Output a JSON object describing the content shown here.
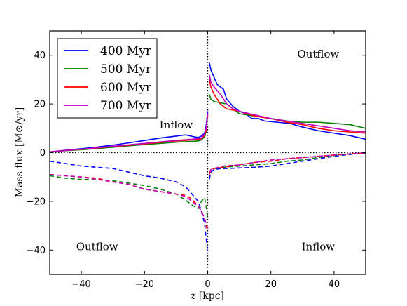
{
  "chart_data": {
    "type": "line",
    "title": "",
    "xlabel": "z [kpc]",
    "ylabel": "Mass flux [M⊙/yr]",
    "xlim": [
      -50,
      50
    ],
    "ylim": [
      -50,
      50
    ],
    "xticks": [
      -40,
      -20,
      0,
      20,
      40
    ],
    "yticks": [
      -40,
      -20,
      0,
      20,
      40
    ],
    "grid": false,
    "legend_position": "top-left",
    "reference_lines": {
      "vertical_x": 0,
      "horizontal_y": 0,
      "style": "dotted"
    },
    "annotations": [
      {
        "text": "Outflow",
        "x": 35,
        "y": 39
      },
      {
        "text": "Inflow",
        "x": -10,
        "y": 10
      },
      {
        "text": "Outflow",
        "x": -35,
        "y": -40
      },
      {
        "text": "Inflow",
        "x": 35,
        "y": -40
      }
    ],
    "series": [
      {
        "name": "400 Myr",
        "color": "#0000ff",
        "solid_left": [
          [
            -50,
            0.3
          ],
          [
            -45,
            1
          ],
          [
            -40,
            1.6
          ],
          [
            -35,
            2.3
          ],
          [
            -30,
            3.1
          ],
          [
            -25,
            4
          ],
          [
            -20,
            5
          ],
          [
            -15,
            6
          ],
          [
            -10,
            6.8
          ],
          [
            -7,
            7.3
          ],
          [
            -5,
            6.7
          ],
          [
            -3,
            6.2
          ],
          [
            -2,
            6.8
          ],
          [
            -1,
            8
          ],
          [
            -0.5,
            11
          ],
          [
            0,
            17
          ]
        ],
        "solid_right": [
          [
            0.5,
            37
          ],
          [
            1,
            34
          ],
          [
            2,
            31
          ],
          [
            3,
            28
          ],
          [
            4,
            27
          ],
          [
            5,
            26
          ],
          [
            6,
            22
          ],
          [
            8,
            19
          ],
          [
            10,
            17
          ],
          [
            12,
            16
          ],
          [
            14,
            14
          ],
          [
            16,
            14
          ],
          [
            18,
            13
          ],
          [
            22,
            12.5
          ],
          [
            26,
            12
          ],
          [
            30,
            10.5
          ],
          [
            35,
            9
          ],
          [
            40,
            8
          ],
          [
            45,
            7
          ],
          [
            50,
            5.5
          ]
        ],
        "dashed_left": [
          [
            -50,
            -3.5
          ],
          [
            -45,
            -4.5
          ],
          [
            -40,
            -5.5
          ],
          [
            -35,
            -6
          ],
          [
            -30,
            -6.5
          ],
          [
            -25,
            -8
          ],
          [
            -20,
            -9.5
          ],
          [
            -15,
            -10.5
          ],
          [
            -10,
            -12
          ],
          [
            -7,
            -14
          ],
          [
            -5,
            -17
          ],
          [
            -3,
            -20
          ],
          [
            -2,
            -24
          ],
          [
            -1,
            -29
          ],
          [
            -0.5,
            -35
          ],
          [
            0,
            -41
          ]
        ],
        "dashed_right": [
          [
            0.5,
            -11
          ],
          [
            1,
            -8
          ],
          [
            2,
            -7
          ],
          [
            4,
            -6.5
          ],
          [
            6,
            -6.5
          ],
          [
            10,
            -6.3
          ],
          [
            15,
            -6
          ],
          [
            20,
            -5.5
          ],
          [
            25,
            -4.5
          ],
          [
            30,
            -3.5
          ],
          [
            35,
            -2.5
          ],
          [
            40,
            -1.5
          ],
          [
            45,
            -0.7
          ],
          [
            50,
            -0.2
          ]
        ]
      },
      {
        "name": "500 Myr",
        "color": "#008000",
        "solid_left": [
          [
            -50,
            0.3
          ],
          [
            -45,
            0.8
          ],
          [
            -40,
            1.2
          ],
          [
            -35,
            1.7
          ],
          [
            -30,
            2.2
          ],
          [
            -25,
            2.8
          ],
          [
            -20,
            3.3
          ],
          [
            -15,
            3.8
          ],
          [
            -10,
            4.3
          ],
          [
            -5,
            4.6
          ],
          [
            -3,
            4.8
          ],
          [
            -2,
            5.2
          ],
          [
            -1,
            6.5
          ],
          [
            -0.5,
            8.5
          ],
          [
            0,
            16
          ]
        ],
        "solid_right": [
          [
            0.5,
            24
          ],
          [
            1,
            22
          ],
          [
            2,
            21
          ],
          [
            4,
            20.5
          ],
          [
            6,
            20
          ],
          [
            8,
            18
          ],
          [
            10,
            16
          ],
          [
            15,
            15
          ],
          [
            20,
            14
          ],
          [
            25,
            13
          ],
          [
            30,
            12.5
          ],
          [
            35,
            12.5
          ],
          [
            40,
            12
          ],
          [
            45,
            11.5
          ],
          [
            50,
            10
          ]
        ],
        "dashed_left": [
          [
            -50,
            -9.5
          ],
          [
            -45,
            -10.5
          ],
          [
            -40,
            -11
          ],
          [
            -35,
            -11
          ],
          [
            -30,
            -11.5
          ],
          [
            -25,
            -12.5
          ],
          [
            -20,
            -13.5
          ],
          [
            -15,
            -15
          ],
          [
            -10,
            -17
          ],
          [
            -7,
            -19.5
          ],
          [
            -5,
            -21.5
          ],
          [
            -3,
            -23
          ],
          [
            -2,
            -20
          ],
          [
            -1,
            -18.5
          ],
          [
            -0.5,
            -22
          ],
          [
            0,
            -27
          ]
        ],
        "dashed_right": [
          [
            0.5,
            -8
          ],
          [
            1,
            -7
          ],
          [
            2,
            -6.5
          ],
          [
            5,
            -6
          ],
          [
            10,
            -5.5
          ],
          [
            15,
            -5
          ],
          [
            20,
            -4.5
          ],
          [
            25,
            -3.5
          ],
          [
            30,
            -3
          ],
          [
            35,
            -2
          ],
          [
            40,
            -1.2
          ],
          [
            45,
            -0.5
          ],
          [
            50,
            -0.2
          ]
        ]
      },
      {
        "name": "600 Myr",
        "color": "#ff0000",
        "solid_left": [
          [
            -50,
            0.3
          ],
          [
            -45,
            0.9
          ],
          [
            -40,
            1.4
          ],
          [
            -35,
            1.9
          ],
          [
            -30,
            2.5
          ],
          [
            -25,
            3
          ],
          [
            -20,
            3.6
          ],
          [
            -15,
            4.2
          ],
          [
            -10,
            4.8
          ],
          [
            -5,
            5.2
          ],
          [
            -3,
            5.4
          ],
          [
            -2,
            5.7
          ],
          [
            -1,
            7
          ],
          [
            -0.5,
            9
          ],
          [
            0,
            16
          ]
        ],
        "solid_right": [
          [
            0.5,
            30
          ],
          [
            1,
            27
          ],
          [
            2,
            24
          ],
          [
            4,
            20
          ],
          [
            6,
            18
          ],
          [
            10,
            17
          ],
          [
            15,
            15
          ],
          [
            20,
            14
          ],
          [
            25,
            12.5
          ],
          [
            30,
            11.5
          ],
          [
            35,
            10
          ],
          [
            40,
            9
          ],
          [
            45,
            8.5
          ],
          [
            50,
            8
          ]
        ],
        "dashed_left": [
          [
            -50,
            -9
          ],
          [
            -45,
            -9.5
          ],
          [
            -40,
            -10
          ],
          [
            -35,
            -10.5
          ],
          [
            -30,
            -12
          ],
          [
            -25,
            -13
          ],
          [
            -20,
            -15
          ],
          [
            -15,
            -16
          ],
          [
            -10,
            -17
          ],
          [
            -7,
            -17.5
          ],
          [
            -5,
            -19
          ],
          [
            -3,
            -22
          ],
          [
            -2,
            -24
          ],
          [
            -1,
            -27
          ],
          [
            -0.5,
            -30
          ],
          [
            0,
            -32
          ]
        ],
        "dashed_right": [
          [
            0.5,
            -9
          ],
          [
            1,
            -7
          ],
          [
            2,
            -6.5
          ],
          [
            5,
            -6
          ],
          [
            10,
            -5
          ],
          [
            15,
            -4
          ],
          [
            20,
            -3.5
          ],
          [
            25,
            -2.5
          ],
          [
            30,
            -2
          ],
          [
            35,
            -1.5
          ],
          [
            40,
            -1
          ],
          [
            45,
            -0.5
          ],
          [
            50,
            -0.1
          ]
        ]
      },
      {
        "name": "700 Myr",
        "color": "#bf00bf",
        "solid_left": [
          [
            -50,
            0.3
          ],
          [
            -45,
            0.9
          ],
          [
            -40,
            1.4
          ],
          [
            -35,
            2
          ],
          [
            -30,
            2.6
          ],
          [
            -25,
            3.2
          ],
          [
            -20,
            3.8
          ],
          [
            -15,
            4.4
          ],
          [
            -10,
            5
          ],
          [
            -5,
            5.5
          ],
          [
            -3,
            5.8
          ],
          [
            -2,
            6
          ],
          [
            -1,
            7.5
          ],
          [
            -0.5,
            10
          ],
          [
            0,
            16
          ]
        ],
        "solid_right": [
          [
            0.5,
            32
          ],
          [
            1,
            29
          ],
          [
            2,
            27
          ],
          [
            4,
            24
          ],
          [
            6,
            20
          ],
          [
            8,
            18
          ],
          [
            10,
            17
          ],
          [
            15,
            15.5
          ],
          [
            20,
            14
          ],
          [
            25,
            13
          ],
          [
            30,
            12
          ],
          [
            35,
            11
          ],
          [
            40,
            10
          ],
          [
            45,
            9
          ],
          [
            50,
            8.5
          ]
        ],
        "dashed_left": [
          [
            -50,
            -9
          ],
          [
            -45,
            -9.5
          ],
          [
            -40,
            -10
          ],
          [
            -35,
            -11
          ],
          [
            -30,
            -12
          ],
          [
            -25,
            -13
          ],
          [
            -20,
            -15
          ],
          [
            -15,
            -16
          ],
          [
            -10,
            -17
          ],
          [
            -7,
            -18
          ],
          [
            -5,
            -20
          ],
          [
            -3,
            -22
          ],
          [
            -2,
            -24
          ],
          [
            -1,
            -27
          ],
          [
            -0.5,
            -29
          ],
          [
            0,
            -31
          ]
        ],
        "dashed_right": [
          [
            0.5,
            -8
          ],
          [
            1,
            -7
          ],
          [
            2,
            -6.5
          ],
          [
            5,
            -5.5
          ],
          [
            10,
            -5
          ],
          [
            15,
            -4
          ],
          [
            20,
            -3
          ],
          [
            25,
            -2.5
          ],
          [
            30,
            -2
          ],
          [
            35,
            -1.5
          ],
          [
            40,
            -1
          ],
          [
            45,
            -0.5
          ],
          [
            50,
            -0.1
          ]
        ]
      }
    ]
  }
}
